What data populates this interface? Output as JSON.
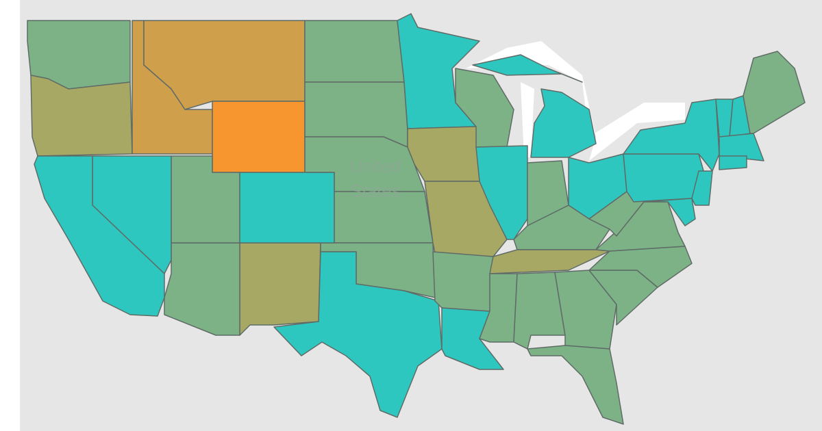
{
  "map": {
    "label": {
      "line1": "United",
      "line2": "States"
    }
  }
}
